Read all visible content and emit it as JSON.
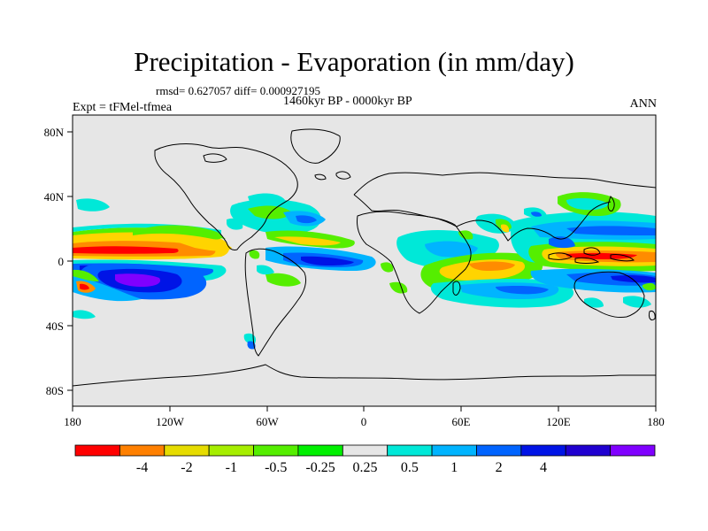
{
  "title": "Precipitation - Evaporation (in mm/day)",
  "stats": "rmsd= 0.627057 diff= 0.000927195",
  "period": "1460kyr BP - 0000kyr BP",
  "experiment": "Expt = tFMel-tfmea",
  "season": "ANN",
  "map": {
    "lon_ticks": [
      "180",
      "120W",
      "60W",
      "0",
      "60E",
      "120E",
      "180"
    ],
    "lat_ticks": [
      "80N",
      "40N",
      "0",
      "40S",
      "80S"
    ],
    "land_color": "#e6e6e6"
  },
  "colorbar": {
    "colors": [
      "#ff0000",
      "#ff8000",
      "#e6dc00",
      "#a6ee00",
      "#55ee00",
      "#00f000",
      "#e6e6e6",
      "#00e8d8",
      "#00b4ff",
      "#0064ff",
      "#0014e6",
      "#2000d0",
      "#8000ff"
    ],
    "labels": [
      "-4",
      "-2",
      "-1",
      "-0.5",
      "-0.25",
      "0.25",
      "0.5",
      "1",
      "2",
      "4"
    ]
  }
}
